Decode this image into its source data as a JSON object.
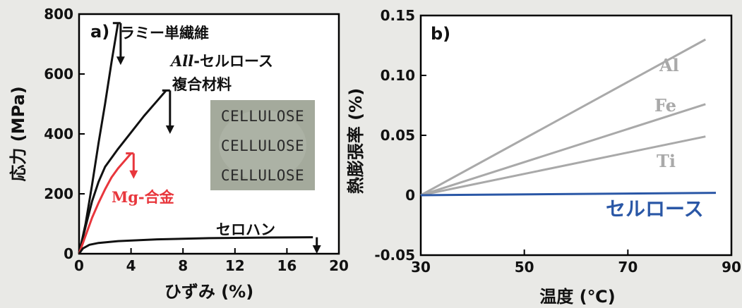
{
  "chart_data": [
    {
      "type": "line",
      "panel_label": "a)",
      "xlabel": "ひずみ (%)",
      "ylabel": "応力 (MPa)",
      "xlim": [
        0,
        20
      ],
      "ylim": [
        0,
        800
      ],
      "xticks": [
        "0",
        "4",
        "8",
        "12",
        "16",
        "20"
      ],
      "yticks": [
        "0",
        "200",
        "400",
        "600",
        "800"
      ],
      "series": [
        {
          "name": "ラミー単繊維",
          "color": "#111111",
          "points": [
            [
              0,
              0
            ],
            [
              0.5,
              100
            ],
            [
              1,
              230
            ],
            [
              1.5,
              370
            ],
            [
              2,
              500
            ],
            [
              2.5,
              640
            ],
            [
              3,
              770
            ]
          ]
        },
        {
          "name": "All-セルロース 複合材料",
          "color": "#111111",
          "points": [
            [
              0,
              0
            ],
            [
              0.5,
              90
            ],
            [
              1,
              175
            ],
            [
              1.5,
              240
            ],
            [
              2,
              290
            ],
            [
              3,
              350
            ],
            [
              4,
              405
            ],
            [
              5,
              460
            ],
            [
              6,
              510
            ],
            [
              6.7,
              545
            ]
          ]
        },
        {
          "name": "Mg-合金",
          "color": "#e8363c",
          "points": [
            [
              0,
              0
            ],
            [
              0.5,
              60
            ],
            [
              1,
              120
            ],
            [
              1.5,
              170
            ],
            [
              2,
              215
            ],
            [
              2.5,
              255
            ],
            [
              3,
              285
            ],
            [
              3.5,
              310
            ],
            [
              4,
              335
            ]
          ]
        },
        {
          "name": "セロハン",
          "color": "#111111",
          "points": [
            [
              0,
              0
            ],
            [
              0.3,
              18
            ],
            [
              0.8,
              30
            ],
            [
              1.5,
              36
            ],
            [
              3,
              42
            ],
            [
              6,
              48
            ],
            [
              10,
              52
            ],
            [
              14,
              54
            ],
            [
              18,
              55
            ]
          ]
        }
      ],
      "labels": {
        "ramie": "ラミー単繊維",
        "composite_prefix": "All",
        "composite_line1": "-セルロース",
        "composite_line2": "複合材料",
        "mg": "Mg-合金",
        "cellophane": "セロハン"
      },
      "photo_text": [
        "CELLULOSE",
        "CELLULOSE",
        "CELLULOSE"
      ]
    },
    {
      "type": "line",
      "panel_label": "b)",
      "xlabel": "温度 (℃)",
      "ylabel": "熱膨張率 (%)",
      "xlim": [
        30,
        90
      ],
      "ylim": [
        -0.05,
        0.15
      ],
      "xticks": [
        "30",
        "50",
        "70",
        "90"
      ],
      "yticks": [
        "-0.05",
        "0",
        "0.05",
        "0.10",
        "0.15"
      ],
      "series": [
        {
          "name": "Al",
          "color": "#a9a9a9",
          "points": [
            [
              30,
              0
            ],
            [
              85,
              0.13
            ]
          ]
        },
        {
          "name": "Fe",
          "color": "#a9a9a9",
          "points": [
            [
              30,
              0
            ],
            [
              85,
              0.076
            ]
          ]
        },
        {
          "name": "Ti",
          "color": "#a9a9a9",
          "points": [
            [
              30,
              0
            ],
            [
              85,
              0.049
            ]
          ]
        },
        {
          "name": "セルロース",
          "color": "#2a57a6",
          "points": [
            [
              30,
              0
            ],
            [
              87,
              0.002
            ]
          ]
        }
      ]
    }
  ]
}
